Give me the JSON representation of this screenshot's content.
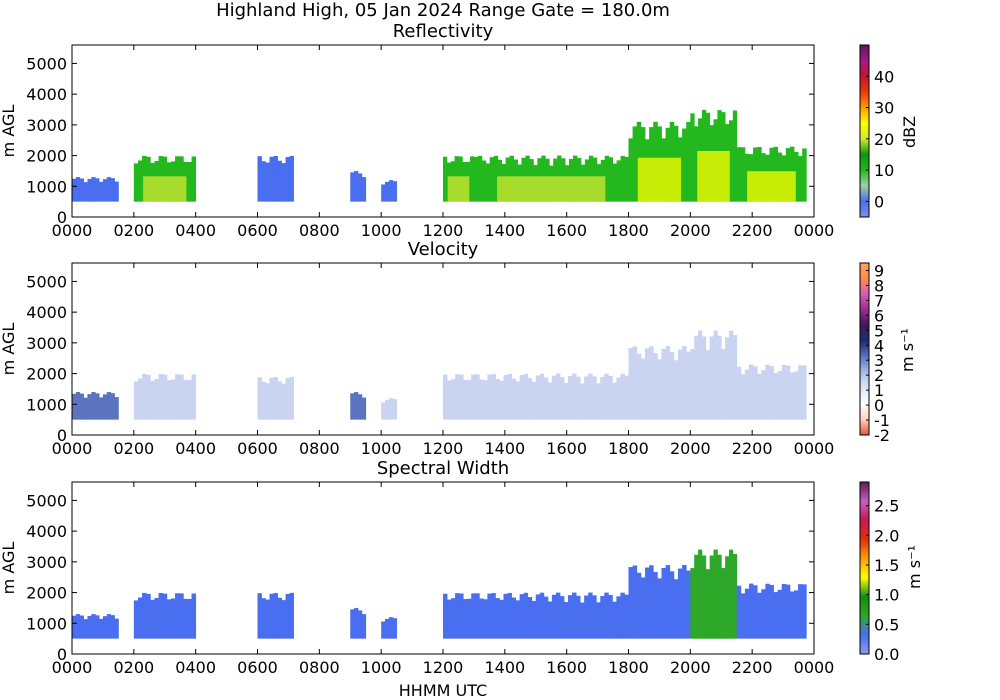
{
  "figure": {
    "title": "Highland High, 05 Jan 2024 Range Gate = 180.0m",
    "xlabel": "HHMM UTC"
  },
  "chart_data": [
    {
      "type": "heatmap",
      "title": "Reflectivity",
      "xlabel": "",
      "ylabel": "m AGL",
      "x_ticks": [
        "0000",
        "0200",
        "0400",
        "0600",
        "0800",
        "1000",
        "1200",
        "1400",
        "1600",
        "1800",
        "2000",
        "2200",
        "0000"
      ],
      "y_ticks": [
        "0",
        "1000",
        "2000",
        "3000",
        "4000",
        "5000"
      ],
      "ylim": [
        0,
        5600
      ],
      "colorbar": {
        "label": "dBZ",
        "range": [
          -5,
          50
        ],
        "ticks": [
          "0",
          "10",
          "20",
          "30",
          "40"
        ],
        "colors": [
          "#7e8ff0",
          "#4a6ef0",
          "#9fd0a0",
          "#22b81e",
          "#0a9a0a",
          "#d6e832",
          "#ffff00",
          "#ff9c00",
          "#e83a08",
          "#c8122e",
          "#a01a88",
          "#5e1a58"
        ]
      },
      "echoes": [
        {
          "start": "0000",
          "end": "0130",
          "top_m": 1300,
          "level": "weak"
        },
        {
          "start": "0200",
          "end": "0400",
          "top_m": 2000,
          "level": "moderate"
        },
        {
          "start": "0600",
          "end": "0710",
          "top_m": 2000,
          "level": "weak"
        },
        {
          "start": "0900",
          "end": "0930",
          "top_m": 1500,
          "level": "weak"
        },
        {
          "start": "1000",
          "end": "1030",
          "top_m": 1200,
          "level": "weak"
        },
        {
          "start": "1200",
          "end": "1300",
          "top_m": 2000,
          "level": "moderate"
        },
        {
          "start": "1300",
          "end": "1800",
          "top_m": 2000,
          "level": "moderate"
        },
        {
          "start": "1800",
          "end": "2000",
          "top_m": 3100,
          "level": "strong"
        },
        {
          "start": "2000",
          "end": "2130",
          "top_m": 3500,
          "level": "strong"
        },
        {
          "start": "2130",
          "end": "2345",
          "top_m": 2300,
          "level": "strong"
        }
      ]
    },
    {
      "type": "heatmap",
      "title": "Velocity",
      "xlabel": "",
      "ylabel": "m AGL",
      "x_ticks": [
        "0000",
        "0200",
        "0400",
        "0600",
        "0800",
        "1000",
        "1200",
        "1400",
        "1600",
        "1800",
        "2000",
        "2200",
        "0000"
      ],
      "y_ticks": [
        "0",
        "1000",
        "2000",
        "3000",
        "4000",
        "5000"
      ],
      "ylim": [
        0,
        5600
      ],
      "colorbar": {
        "label": "m s⁻¹",
        "range": [
          -2,
          9.5
        ],
        "ticks": [
          "-2",
          "-1",
          "0",
          "1",
          "2",
          "3",
          "4",
          "5",
          "6",
          "7",
          "8",
          "9"
        ],
        "colors": [
          "#e8543a",
          "#ffd0c0",
          "#ffffff",
          "#dfe5f5",
          "#aabde8",
          "#5a74c0",
          "#1e2e70",
          "#3a1a58",
          "#9a2a88",
          "#d85ab8",
          "#ff8c4a",
          "#ffa060"
        ]
      },
      "echoes": [
        {
          "start": "0000",
          "end": "0130",
          "top_m": 1400,
          "level": "moderate"
        },
        {
          "start": "0200",
          "end": "0400",
          "top_m": 2000,
          "level": "weak"
        },
        {
          "start": "0600",
          "end": "0710",
          "top_m": 1900,
          "level": "weak"
        },
        {
          "start": "0900",
          "end": "0930",
          "top_m": 1400,
          "level": "moderate"
        },
        {
          "start": "1000",
          "end": "1030",
          "top_m": 1200,
          "level": "weak"
        },
        {
          "start": "1200",
          "end": "1800",
          "top_m": 2000,
          "level": "weak"
        },
        {
          "start": "1800",
          "end": "2000",
          "top_m": 2900,
          "level": "weak"
        },
        {
          "start": "2000",
          "end": "2130",
          "top_m": 3400,
          "level": "weak"
        },
        {
          "start": "2130",
          "end": "2345",
          "top_m": 2300,
          "level": "weak"
        }
      ]
    },
    {
      "type": "heatmap",
      "title": "Spectral Width",
      "xlabel": "HHMM UTC",
      "ylabel": "m AGL",
      "x_ticks": [
        "0000",
        "0200",
        "0400",
        "0600",
        "0800",
        "1000",
        "1200",
        "1400",
        "1600",
        "1800",
        "2000",
        "2200",
        "0000"
      ],
      "y_ticks": [
        "0",
        "1000",
        "2000",
        "3000",
        "4000",
        "5000"
      ],
      "ylim": [
        0,
        5600
      ],
      "colorbar": {
        "label": "m s⁻¹",
        "range": [
          0,
          2.9
        ],
        "ticks": [
          "0.0",
          "0.5",
          "1.0",
          "1.5",
          "2.0",
          "2.5"
        ],
        "colors": [
          "#8a9cf0",
          "#4a6ef0",
          "#2ea82a",
          "#0e8e0e",
          "#ffff00",
          "#ff9c00",
          "#e0300a",
          "#c81a4a",
          "#c060c0",
          "#5e1a58"
        ]
      },
      "echoes": [
        {
          "start": "0000",
          "end": "0130",
          "top_m": 1300,
          "level": "weak"
        },
        {
          "start": "0200",
          "end": "0400",
          "top_m": 2000,
          "level": "weak"
        },
        {
          "start": "0600",
          "end": "0710",
          "top_m": 2000,
          "level": "weak"
        },
        {
          "start": "0900",
          "end": "0930",
          "top_m": 1500,
          "level": "weak"
        },
        {
          "start": "1000",
          "end": "1030",
          "top_m": 1200,
          "level": "weak"
        },
        {
          "start": "1200",
          "end": "1800",
          "top_m": 2000,
          "level": "weak"
        },
        {
          "start": "1800",
          "end": "2000",
          "top_m": 2900,
          "level": "weak"
        },
        {
          "start": "2000",
          "end": "2130",
          "top_m": 3400,
          "level": "moderate"
        },
        {
          "start": "2130",
          "end": "2345",
          "top_m": 2300,
          "level": "weak"
        }
      ]
    }
  ]
}
